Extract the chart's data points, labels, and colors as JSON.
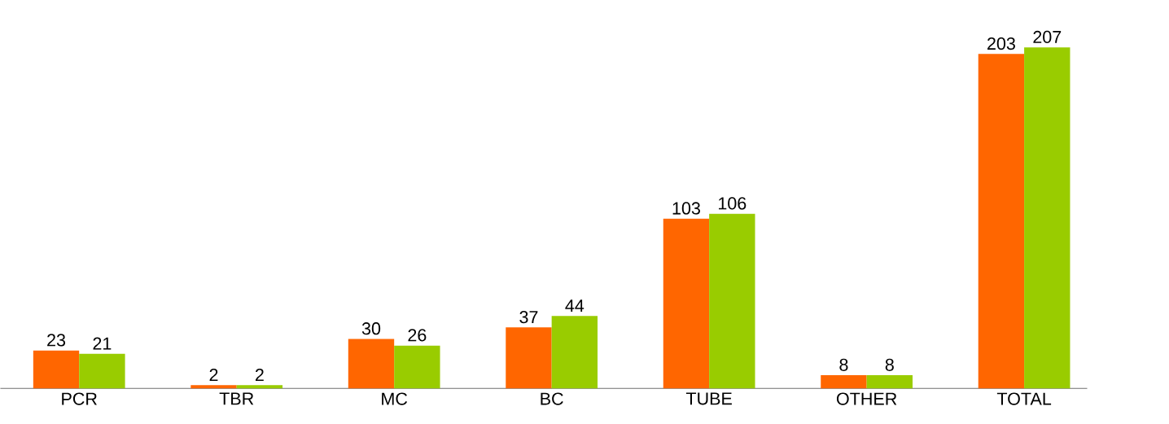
{
  "chart_data": {
    "type": "bar",
    "categories": [
      "PCR",
      "TBR",
      "MC",
      "BC",
      "TUBE",
      "OTHER",
      "TOTAL"
    ],
    "series": [
      {
        "color": "#ff6600",
        "values": [
          23,
          2,
          30,
          37,
          103,
          8,
          203
        ]
      },
      {
        "color": "#99cc00",
        "values": [
          21,
          2,
          26,
          44,
          106,
          8,
          207
        ]
      }
    ],
    "data_labels": true
  }
}
